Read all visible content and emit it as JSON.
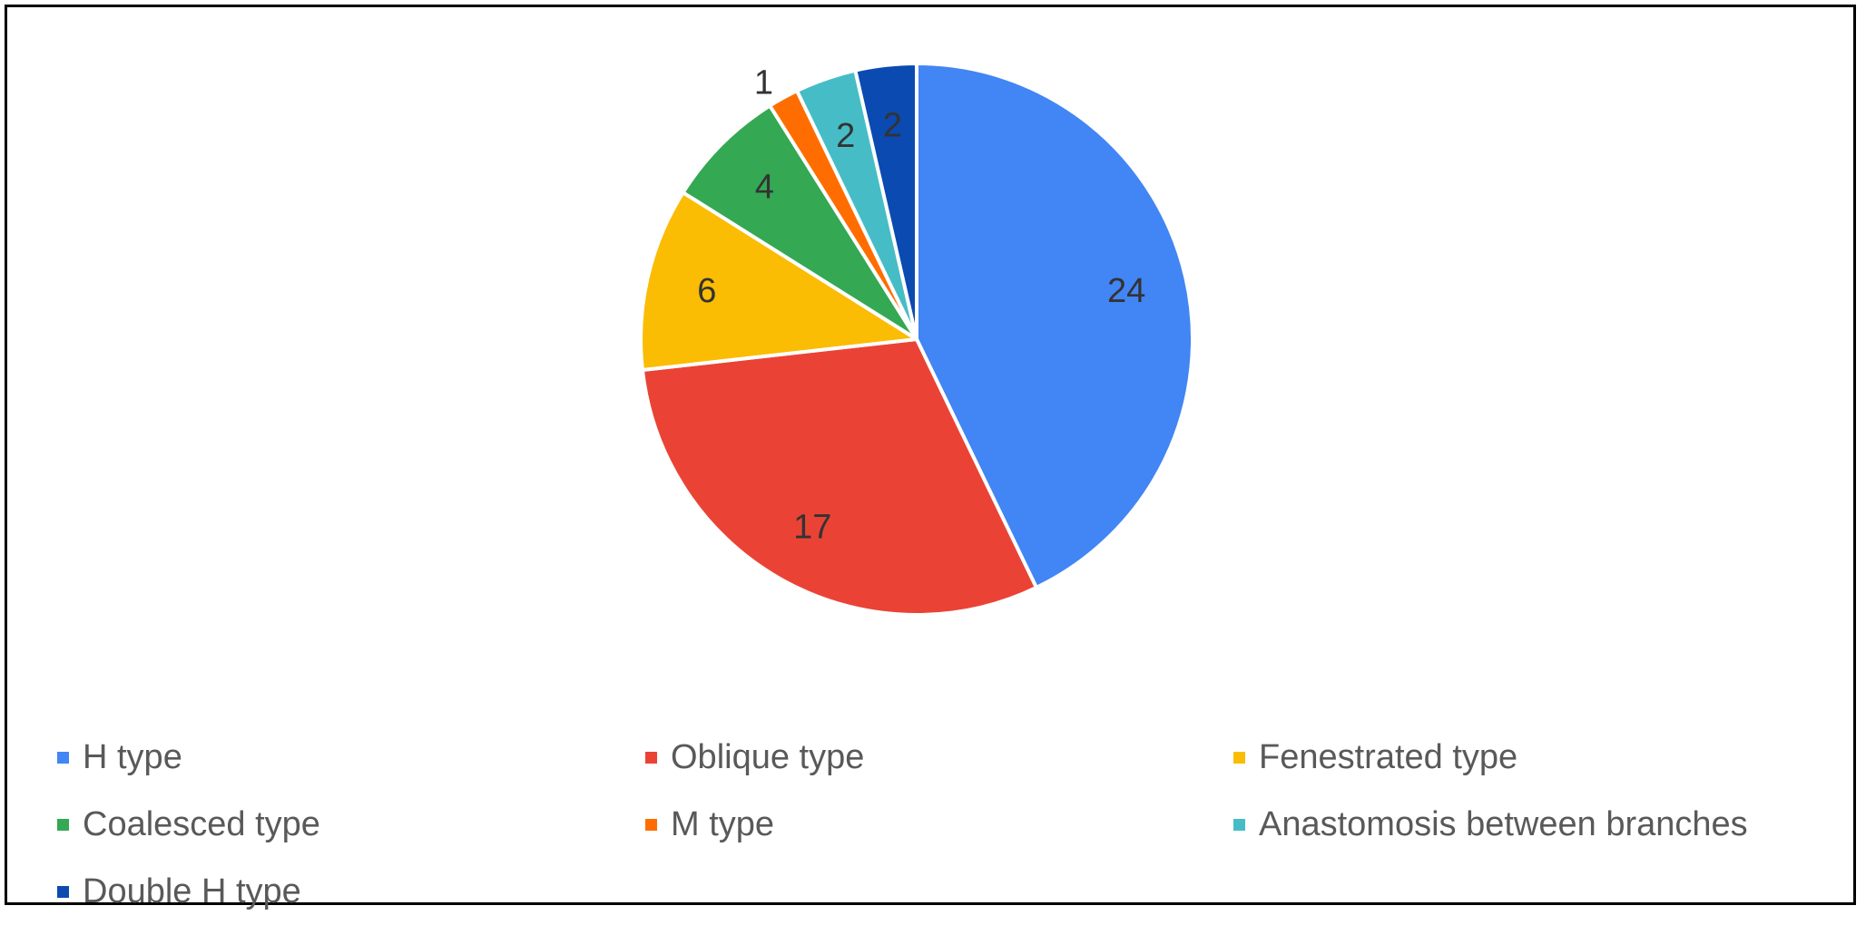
{
  "chart_data": {
    "type": "pie",
    "title": "",
    "categories": [
      "H type",
      "Oblique type",
      "Fenestrated type",
      "Coalesced type",
      "M type",
      "Anastomosis between branches",
      "Double H type"
    ],
    "values": [
      24,
      17,
      6,
      4,
      1,
      2,
      2
    ],
    "colors": [
      "#4285F4",
      "#EA4335",
      "#FBBC04",
      "#34A853",
      "#FF6D01",
      "#46BDC6",
      "#0B4AB0"
    ],
    "start_angle_deg": 0,
    "direction": "clockwise",
    "data_labels": "values",
    "legend_position": "bottom"
  }
}
